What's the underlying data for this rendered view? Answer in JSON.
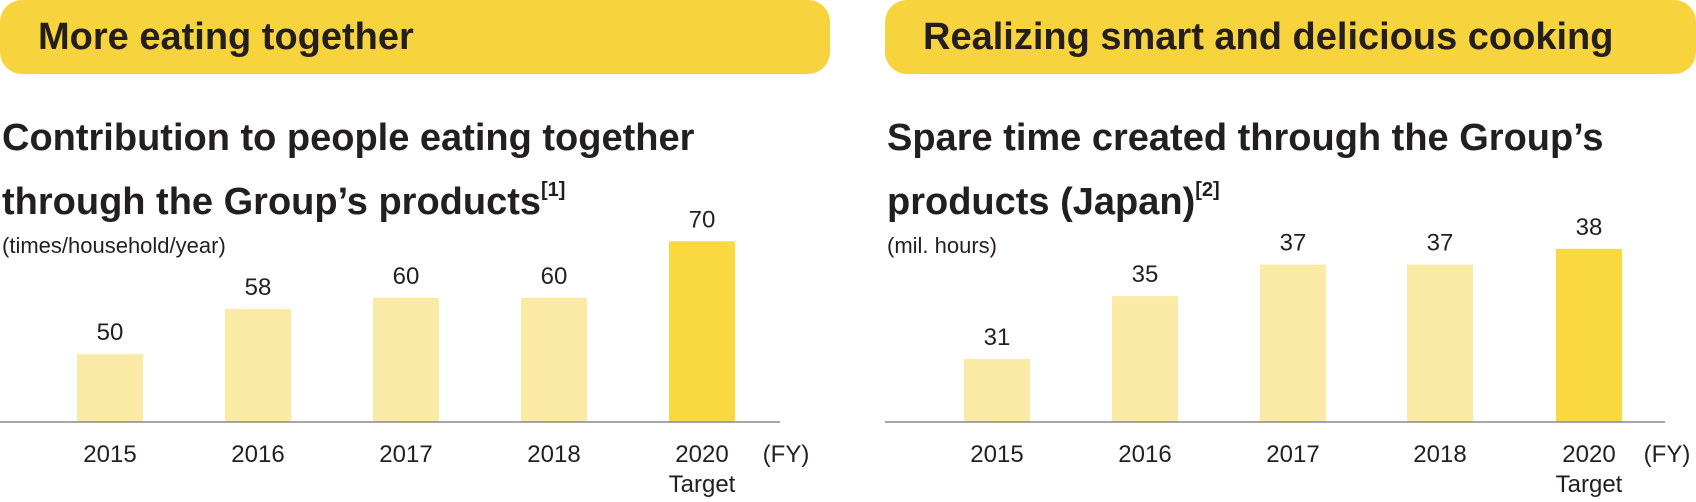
{
  "panels": [
    {
      "banner": "More eating together",
      "title_line1": "Contribution to people eating together",
      "title_line2": "through the Group’s products",
      "footnote": "[1]",
      "unit": "(times/household/year)",
      "fy_label": "(FY)",
      "chart_data": {
        "type": "bar",
        "categories": [
          "2015",
          "2016",
          "2017",
          "2018",
          "2020"
        ],
        "category_sublabels": [
          "",
          "",
          "",
          "",
          "Target"
        ],
        "values": [
          50,
          58,
          60,
          60,
          70
        ],
        "ylim": [
          38,
          72
        ],
        "colors": [
          "#fbe9a6",
          "#fbe9a6",
          "#fbe9a6",
          "#fbe9a6",
          "#f9d93f"
        ],
        "grid": false,
        "value_labels": true
      }
    },
    {
      "banner": "Realizing smart and delicious cooking",
      "title_line1": "Spare time created through the Group’s",
      "title_line2": "products (Japan)",
      "footnote": "[2]",
      "unit": "(mil. hours)",
      "fy_label": "(FY)",
      "chart_data": {
        "type": "bar",
        "categories": [
          "2015",
          "2016",
          "2017",
          "2018",
          "2020"
        ],
        "category_sublabels": [
          "",
          "",
          "",
          "",
          "Target"
        ],
        "values": [
          31,
          35,
          37,
          37,
          38
        ],
        "ylim": [
          27,
          39.2
        ],
        "colors": [
          "#fbe9a6",
          "#fbe9a6",
          "#fbe9a6",
          "#fbe9a6",
          "#f9d93f"
        ],
        "grid": false,
        "value_labels": true
      }
    }
  ]
}
